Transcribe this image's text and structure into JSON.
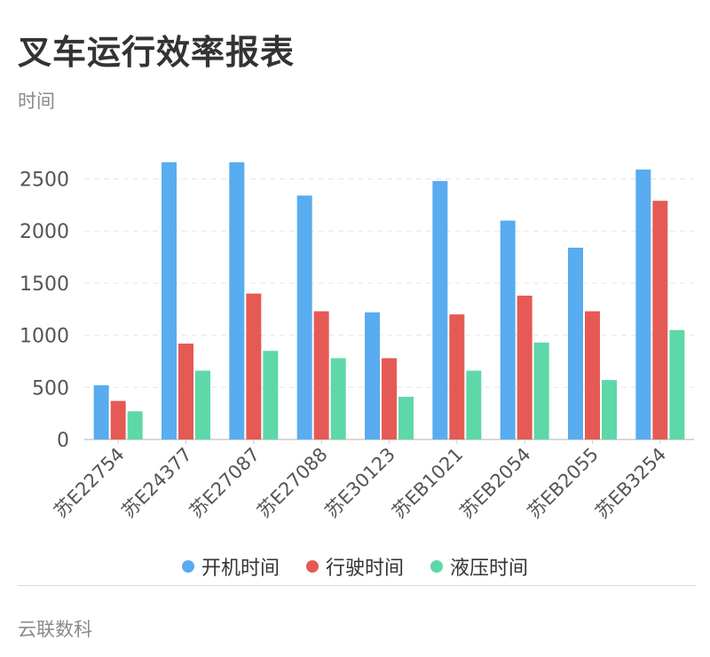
{
  "header": {
    "title": "叉车运行效率报表",
    "subtitle": "时间"
  },
  "footer": {
    "text": "云联数科"
  },
  "colors": {
    "series": [
      "#58ACEF",
      "#E65A55",
      "#5ED8A8"
    ],
    "grid": "#e6e6e6",
    "axis": "#cccccc",
    "tick_text": "#555555"
  },
  "chart_data": {
    "type": "bar",
    "title": "叉车运行效率报表",
    "subtitle": "时间",
    "categories": [
      "苏E22754",
      "苏E24377",
      "苏E27087",
      "苏E27088",
      "苏E30123",
      "苏EB1021",
      "苏EB2054",
      "苏EB2055",
      "苏EB3254"
    ],
    "series": [
      {
        "name": "开机时间",
        "values": [
          520,
          2660,
          2660,
          2340,
          1220,
          2480,
          2100,
          1840,
          2590
        ]
      },
      {
        "name": "行驶时间",
        "values": [
          370,
          920,
          1400,
          1230,
          780,
          1200,
          1380,
          1230,
          2290
        ]
      },
      {
        "name": "液压时间",
        "values": [
          270,
          660,
          850,
          780,
          410,
          660,
          930,
          570,
          1050
        ]
      }
    ],
    "ylim": [
      0,
      2500
    ],
    "yticks": [
      0,
      500,
      1000,
      1500,
      2000,
      2500
    ],
    "grid": true,
    "legend_position": "bottom"
  }
}
